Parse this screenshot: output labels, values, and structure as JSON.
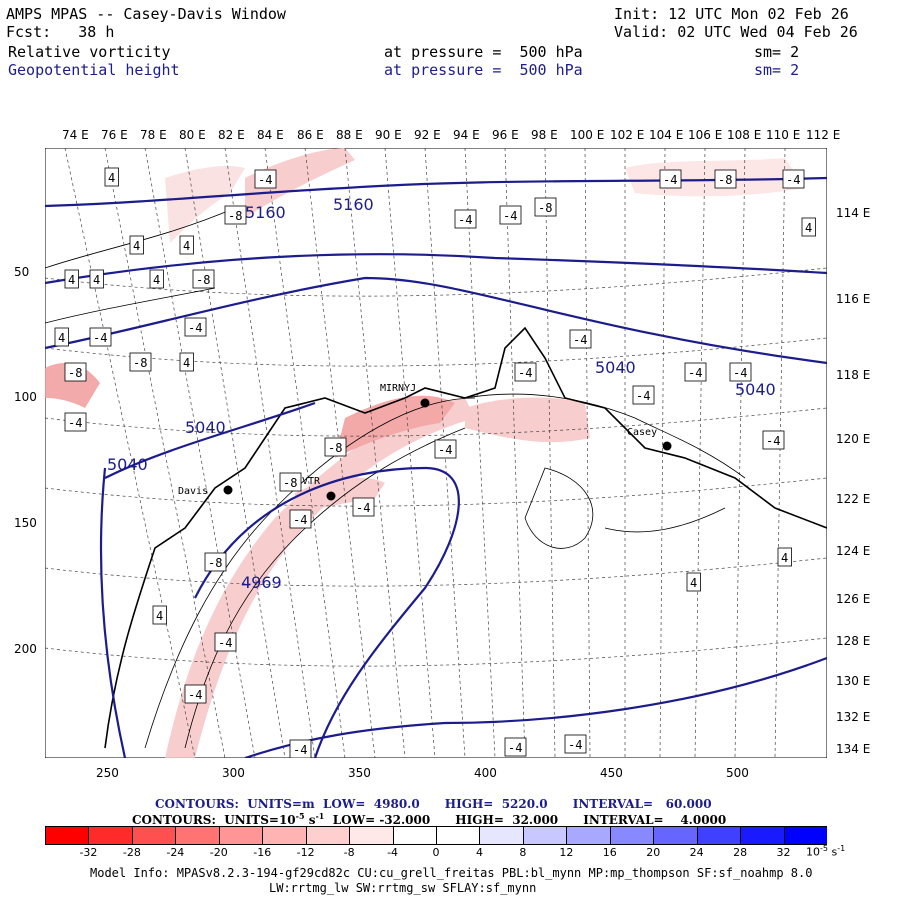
{
  "header": {
    "title": "AMPS MPAS -- Casey-Davis Window",
    "fcst": "Fcst:   38 h",
    "init": "Init: 12 UTC Mon 02 Feb 26",
    "valid": "Valid: 02 UTC Wed 04 Feb 26",
    "field1": {
      "name": "Relative vorticity",
      "pressure": "at pressure =  500 hPa",
      "sm": "sm= 2"
    },
    "field2": {
      "name": "Geopotential height",
      "pressure": "at pressure =  500 hPa",
      "sm": "sm= 2"
    }
  },
  "top_longitudes": [
    "74 E",
    "76 E",
    "78 E",
    "80 E",
    "82 E",
    "84 E",
    "86 E",
    "88 E",
    "90 E",
    "92 E",
    "94 E",
    "96 E",
    "98 E",
    "100 E",
    "102 E",
    "104 E",
    "106 E",
    "108 E",
    "110 E",
    "112 E"
  ],
  "right_longitudes": [
    "114 E",
    "116 E",
    "118 E",
    "120 E",
    "122 E",
    "124 E",
    "126 E",
    "128 E",
    "130 E",
    "132 E",
    "134 E"
  ],
  "left_axis": [
    "50",
    "100",
    "150",
    "200"
  ],
  "bottom_axis": [
    "250",
    "300",
    "350",
    "400",
    "450",
    "500"
  ],
  "stations": [
    "MIRNYJ",
    "Casey",
    "Davis",
    "VTR"
  ],
  "height_labels": [
    "5160",
    "5160",
    "5040",
    "5040",
    "5040",
    "5040",
    "4969"
  ],
  "vort_labels": [
    "4",
    "-4",
    "-8"
  ],
  "contour_info": {
    "line1": "CONTOURS:  UNITS=m  LOW=  4980.0      HIGH=  5220.0      INTERVAL=   60.000",
    "line2": "CONTOURS:  UNITS=10",
    "line2_sup": "-5",
    "line2_rest": " s",
    "line2_sup2": "-1",
    "line2_tail": "  LOW= -32.000      HIGH=  32.000      INTERVAL=    4.0000"
  },
  "colorbar": {
    "ticks": [
      "-32",
      "-28",
      "-24",
      "-20",
      "-16",
      "-12",
      "-8",
      "-4",
      "0",
      "4",
      "8",
      "12",
      "16",
      "20",
      "24",
      "28",
      "32"
    ],
    "units": "10",
    "units_sup": "-5",
    "units_rest": " s",
    "units_sup2": "-1",
    "colors": [
      "#ff0000",
      "#ff2a2a",
      "#ff5050",
      "#ff7373",
      "#ff9595",
      "#ffb3b3",
      "#ffcfcf",
      "#ffe8e8",
      "#ffffff",
      "#ffffff",
      "#e6e6ff",
      "#c8c8ff",
      "#a8a8ff",
      "#8888ff",
      "#6666ff",
      "#4040ff",
      "#1a1aff",
      "#0000ff"
    ]
  },
  "model_info": {
    "line1": "Model Info: MPASv8.2.3-194-gf29cd82c CU:cu_grell_freitas PBL:bl_mynn MP:mp_thompson SF:sf_noahmp 8.0",
    "line2": "LW:rrtmg_lw SW:rrtmg_sw SFLAY:sf_mynn"
  }
}
